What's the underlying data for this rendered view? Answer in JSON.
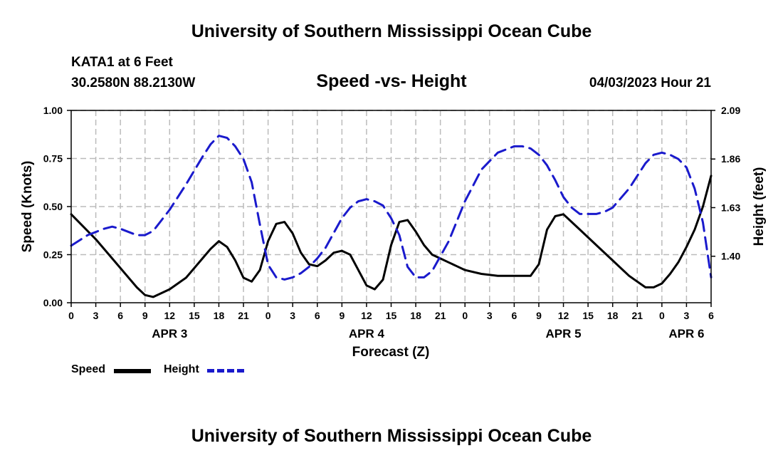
{
  "header": {
    "title": "University of Southern Mississippi Ocean Cube",
    "station": "KATA1 at 6 Feet",
    "coords": "30.2580N  88.2130W",
    "chart_title": "Speed -vs- Height",
    "date": "04/03/2023 Hour 21"
  },
  "footer": {
    "title": "University of Southern Mississippi Ocean Cube"
  },
  "legend": {
    "speed_label": "Speed",
    "height_label": "Height"
  },
  "colors": {
    "speed": "#000000",
    "height": "#1a1acc",
    "grid": "#bbbbbb"
  },
  "chart_data": {
    "type": "line",
    "title": "Speed -vs- Height",
    "xlabel": "Forecast (Z)",
    "ylabel": "Speed (Knots)",
    "y2label": "Height (feet)",
    "x_unit": "forecast hour from Apr 3 00Z",
    "xlim": [
      0,
      78
    ],
    "ylim": [
      0,
      1
    ],
    "y2lim": [
      1.18,
      2.09
    ],
    "x_ticks": [
      0,
      3,
      6,
      9,
      12,
      15,
      18,
      21,
      24,
      27,
      30,
      33,
      36,
      39,
      42,
      45,
      48,
      51,
      54,
      57,
      60,
      63,
      66,
      69,
      72,
      75,
      78
    ],
    "x_tick_labels": [
      "0",
      "3",
      "6",
      "9",
      "12",
      "15",
      "18",
      "21",
      "0",
      "3",
      "6",
      "9",
      "12",
      "15",
      "18",
      "21",
      "0",
      "3",
      "6",
      "9",
      "12",
      "15",
      "18",
      "21",
      "0",
      "3",
      "6"
    ],
    "y_ticks": [
      0,
      0.25,
      0.5,
      0.75,
      1.0
    ],
    "y_tick_labels": [
      "0.00",
      "0.25",
      "0.50",
      "0.75",
      "1.00"
    ],
    "y2_ticks": [
      1.4,
      1.63,
      1.86,
      2.09
    ],
    "y2_tick_labels": [
      "1.40",
      "1.63",
      "1.86",
      "2.09"
    ],
    "day_labels": [
      {
        "x": 12,
        "label": "APR 3"
      },
      {
        "x": 36,
        "label": "APR 4"
      },
      {
        "x": 60,
        "label": "APR 5"
      },
      {
        "x": 75,
        "label": "APR 6"
      }
    ],
    "series": [
      {
        "name": "Speed",
        "axis": "left",
        "style": "solid",
        "x": [
          0,
          3,
          6,
          8,
          9,
          10,
          12,
          14,
          16,
          17,
          18,
          19,
          20,
          21,
          22,
          23,
          24,
          25,
          26,
          27,
          28,
          29,
          30,
          31,
          32,
          33,
          34,
          35,
          36,
          37,
          38,
          39,
          40,
          41,
          42,
          43,
          44,
          45,
          46,
          47,
          48,
          50,
          52,
          54,
          56,
          57,
          58,
          59,
          60,
          61,
          62,
          64,
          66,
          68,
          70,
          71,
          72,
          73,
          74,
          75,
          76,
          77,
          78
        ],
        "y": [
          0.46,
          0.33,
          0.18,
          0.08,
          0.04,
          0.03,
          0.07,
          0.13,
          0.23,
          0.28,
          0.32,
          0.29,
          0.22,
          0.13,
          0.11,
          0.17,
          0.32,
          0.41,
          0.42,
          0.36,
          0.26,
          0.2,
          0.19,
          0.22,
          0.26,
          0.27,
          0.25,
          0.17,
          0.09,
          0.07,
          0.12,
          0.3,
          0.42,
          0.43,
          0.37,
          0.3,
          0.25,
          0.23,
          0.21,
          0.19,
          0.17,
          0.15,
          0.14,
          0.14,
          0.14,
          0.2,
          0.38,
          0.45,
          0.46,
          0.42,
          0.38,
          0.3,
          0.22,
          0.14,
          0.08,
          0.08,
          0.1,
          0.15,
          0.21,
          0.29,
          0.38,
          0.5,
          0.66
        ]
      },
      {
        "name": "Height",
        "axis": "right",
        "style": "dashed",
        "x": [
          0,
          2,
          4,
          5,
          6,
          8,
          9,
          10,
          12,
          14,
          16,
          17,
          18,
          19,
          20,
          21,
          22,
          23,
          24,
          25,
          26,
          27,
          28,
          29,
          30,
          31,
          32,
          33,
          34,
          35,
          36,
          37,
          38,
          39,
          40,
          41,
          42,
          43,
          44,
          46,
          48,
          50,
          52,
          54,
          55,
          56,
          57,
          58,
          59,
          60,
          61,
          62,
          63,
          64,
          65,
          66,
          68,
          70,
          71,
          72,
          73,
          74,
          75,
          76,
          77,
          78
        ],
        "y": [
          1.45,
          1.5,
          1.53,
          1.54,
          1.53,
          1.5,
          1.5,
          1.52,
          1.62,
          1.74,
          1.87,
          1.93,
          1.97,
          1.96,
          1.92,
          1.86,
          1.75,
          1.55,
          1.36,
          1.3,
          1.29,
          1.3,
          1.32,
          1.35,
          1.39,
          1.44,
          1.51,
          1.58,
          1.63,
          1.66,
          1.67,
          1.66,
          1.64,
          1.58,
          1.5,
          1.35,
          1.3,
          1.3,
          1.33,
          1.47,
          1.66,
          1.81,
          1.89,
          1.92,
          1.92,
          1.91,
          1.88,
          1.83,
          1.76,
          1.68,
          1.63,
          1.6,
          1.6,
          1.6,
          1.61,
          1.63,
          1.72,
          1.84,
          1.88,
          1.89,
          1.88,
          1.86,
          1.82,
          1.72,
          1.56,
          1.3
        ]
      }
    ]
  }
}
